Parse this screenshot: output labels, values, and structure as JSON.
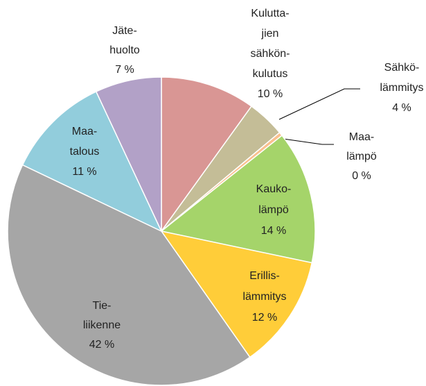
{
  "chart_data": {
    "type": "pie",
    "categories": [
      [
        "Kulutta-",
        "jien",
        "sähkön-",
        "kulutus"
      ],
      [
        "Sähkö-",
        "lämmitys"
      ],
      [
        "Maa-",
        "lämpö"
      ],
      [
        "Kauko-",
        "lämpö"
      ],
      [
        "Erillis-",
        "lämmitys"
      ],
      [
        "Tie-",
        "liikenne"
      ],
      [
        "Maa-",
        "talous"
      ],
      [
        "Jäte-",
        "huolto"
      ]
    ],
    "values": [
      10,
      4,
      0.4,
      14,
      12,
      42,
      11,
      7
    ],
    "value_labels": [
      "10 %",
      "4 %",
      "0 %",
      "14 %",
      "12 %",
      "42 %",
      "11 %",
      "7 %"
    ],
    "colors": [
      "#d99694",
      "#c4bd97",
      "#fac08f",
      "#a5d46a",
      "#ffcd39",
      "#a6a6a6",
      "#92cddc",
      "#b2a1c7"
    ]
  }
}
